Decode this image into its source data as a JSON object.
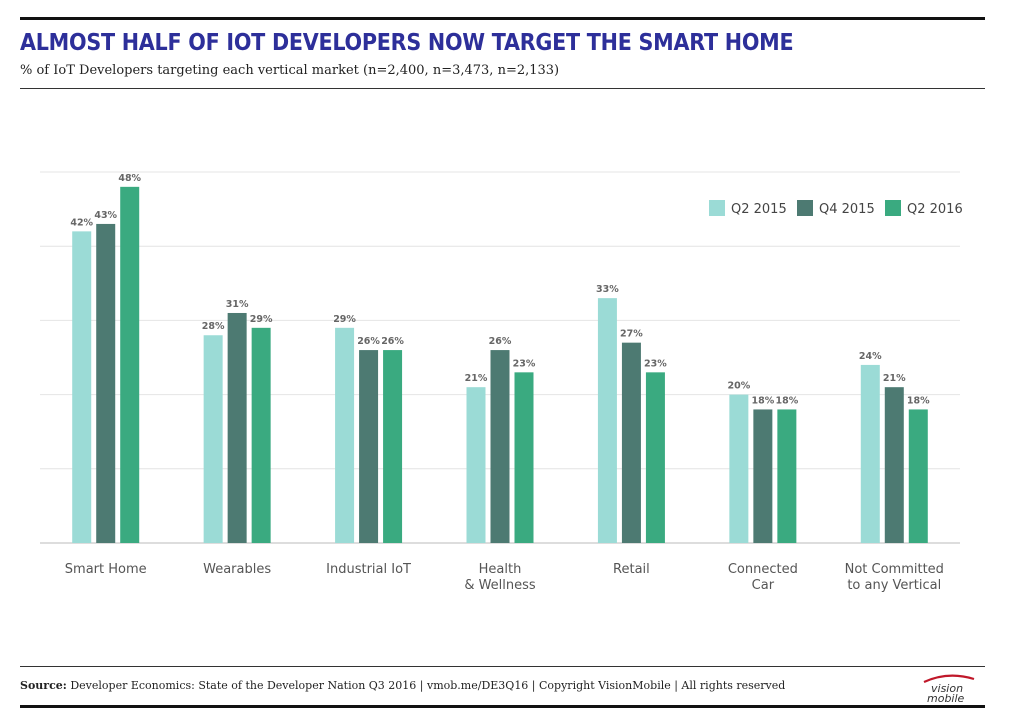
{
  "header": {
    "title": "ALMOST HALF OF IOT DEVELOPERS NOW TARGET THE SMART HOME",
    "subtitle": "% of IoT Developers targeting each vertical market (n=2,400, n=3,473, n=2,133)"
  },
  "footer": {
    "source_label": "Source:",
    "source_text": "Developer Economics: State of the Developer Nation Q3 2016   |   vmob.me/DE3Q16   |   Copyright VisionMobile   |   All rights reserved",
    "logo_text": "vision mobile"
  },
  "chart_data": {
    "type": "bar",
    "categories": [
      [
        "Smart Home"
      ],
      [
        "Wearables"
      ],
      [
        "Industrial IoT"
      ],
      [
        "Health",
        "& Wellness"
      ],
      [
        "Retail"
      ],
      [
        "Connected",
        "Car"
      ],
      [
        "Not Committed",
        "to any Vertical"
      ]
    ],
    "series": [
      {
        "name": "Q2 2015",
        "color": "#9bdbd6",
        "values": [
          42,
          28,
          29,
          21,
          33,
          20,
          24
        ]
      },
      {
        "name": "Q4 2015",
        "color": "#4d7a72",
        "values": [
          43,
          31,
          26,
          26,
          27,
          18,
          21
        ]
      },
      {
        "name": "Q2 2016",
        "color": "#3aaa80",
        "values": [
          48,
          29,
          26,
          23,
          23,
          18,
          18
        ]
      }
    ],
    "value_suffix": "%",
    "ylim": [
      0,
      50
    ],
    "grid": true,
    "legend_position": "top-right"
  }
}
